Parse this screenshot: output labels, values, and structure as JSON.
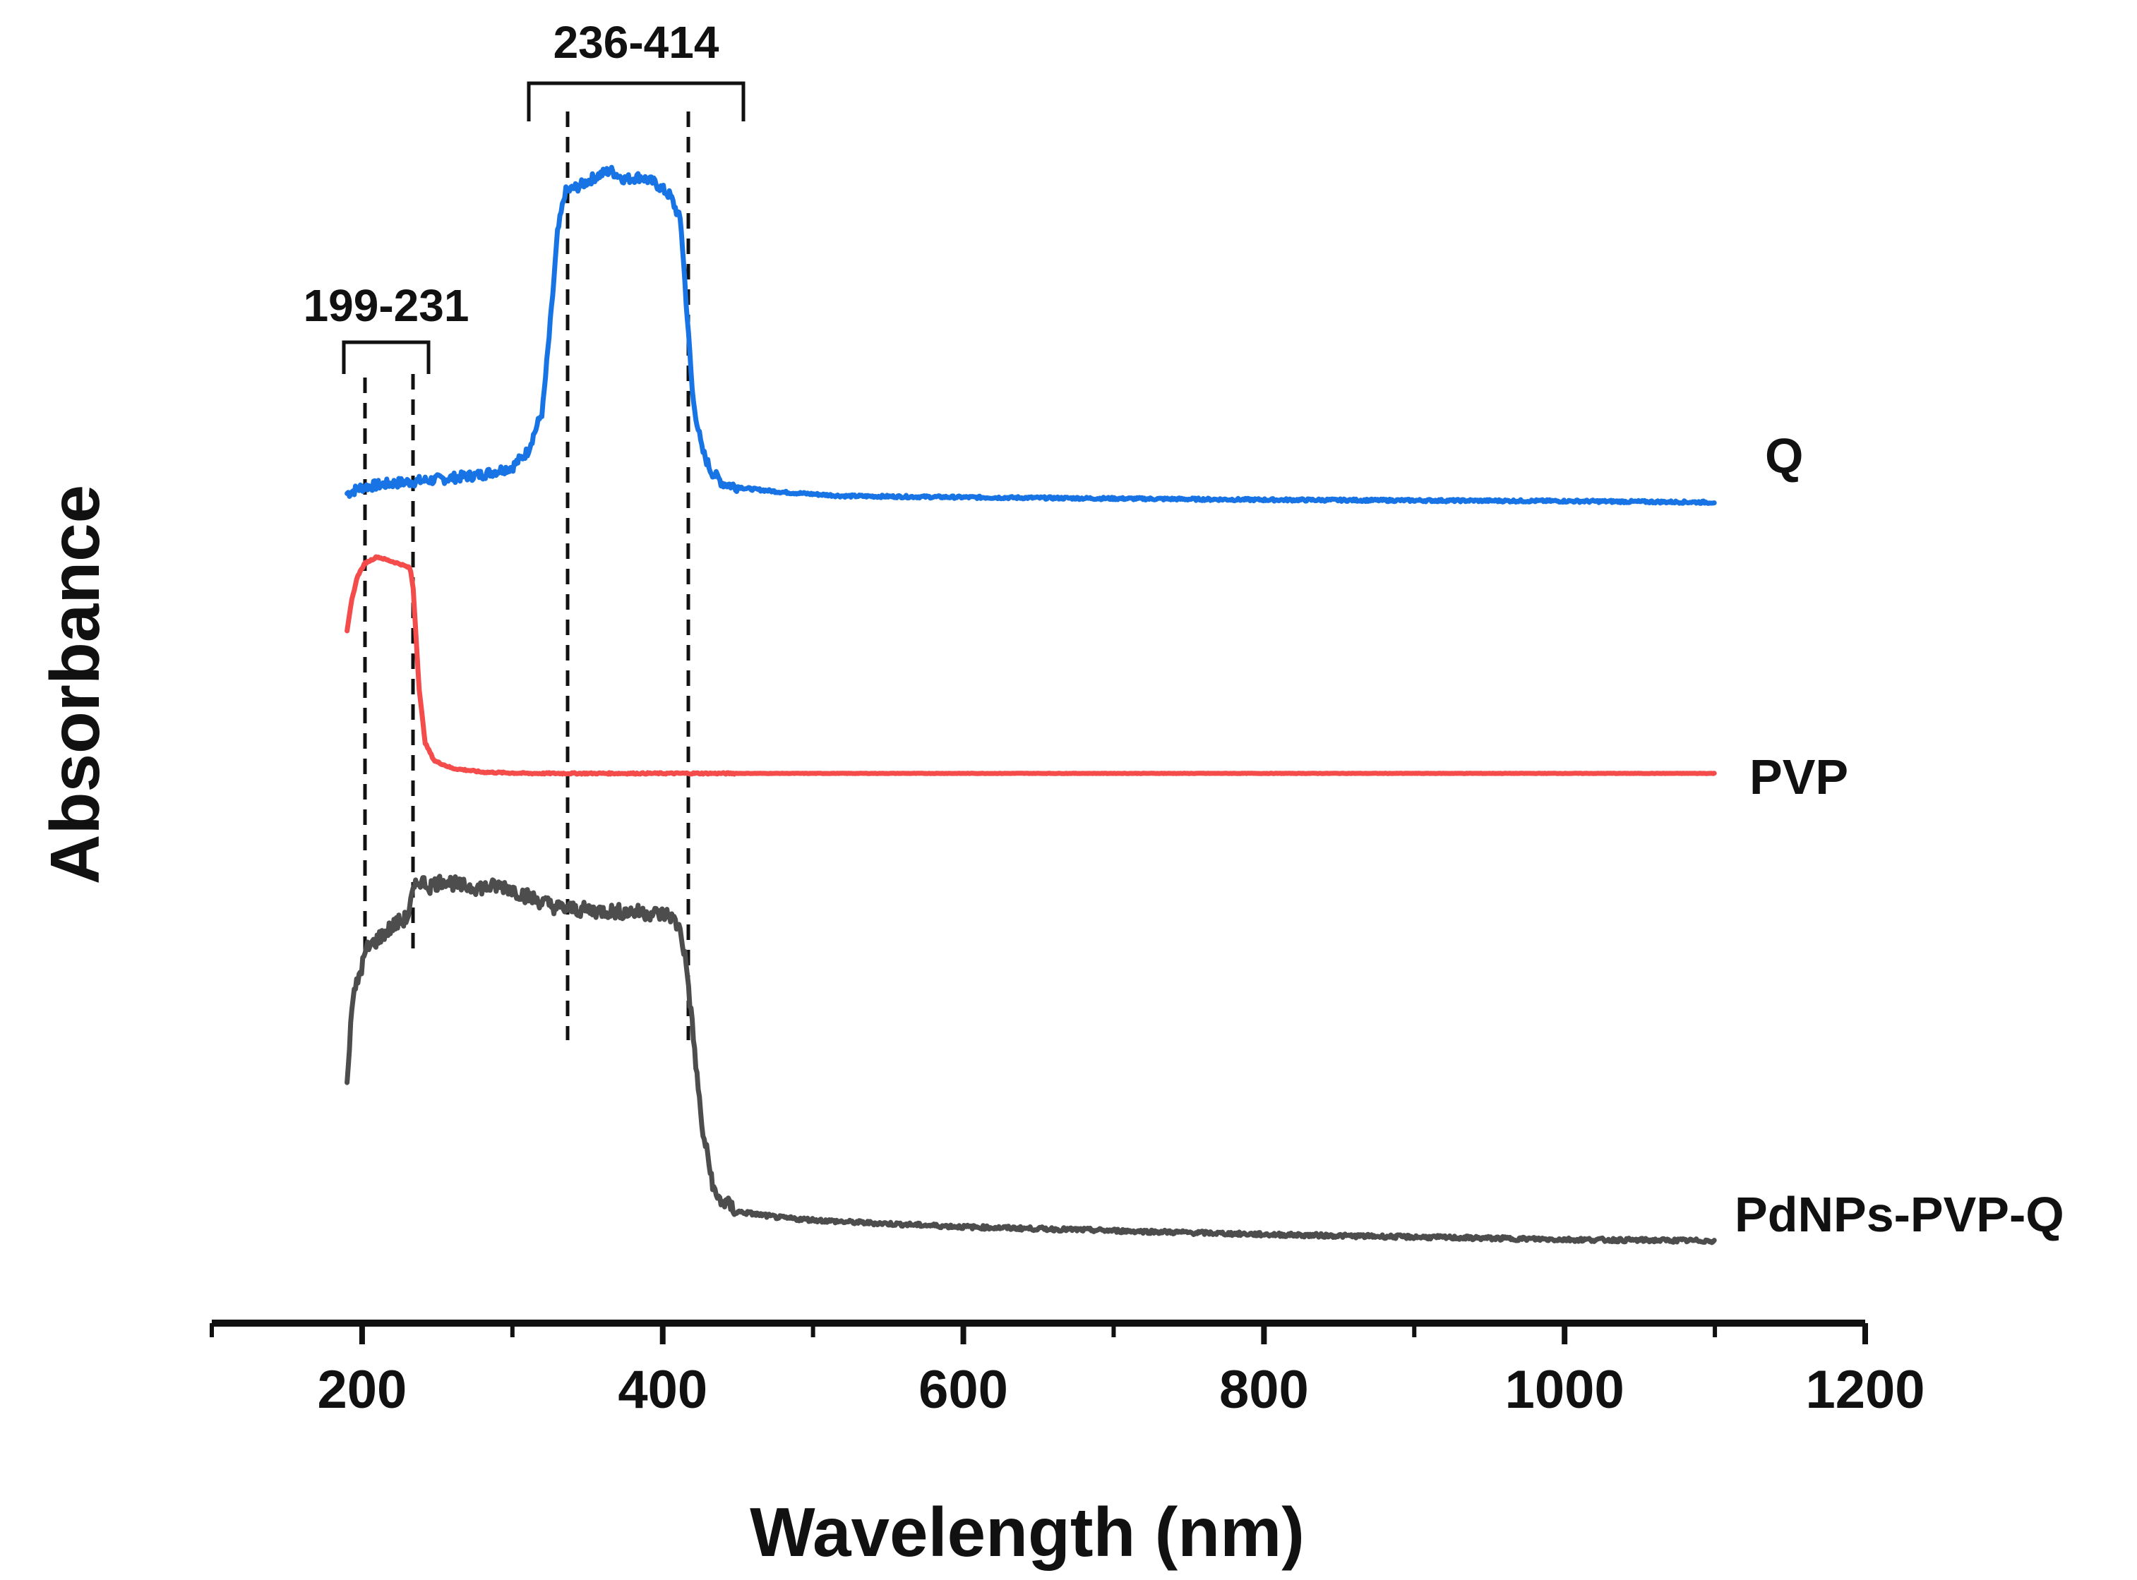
{
  "chart_data": {
    "type": "line",
    "title": "",
    "xlabel": "Wavelength (nm)",
    "ylabel": "Absorbance",
    "xlim": [
      100,
      1200
    ],
    "ylim": [
      0,
      1
    ],
    "x_ticks": [
      {
        "value": 200,
        "label": "200"
      },
      {
        "value": 400,
        "label": "400"
      },
      {
        "value": 600,
        "label": "600"
      },
      {
        "value": 800,
        "label": "800"
      },
      {
        "value": 1000,
        "label": "1000"
      },
      {
        "value": 1200,
        "label": "1200"
      }
    ],
    "y_axis_ticks_shown": false,
    "series": [
      {
        "name": "Q",
        "color": "#1874e4",
        "x": [
          190,
          200,
          220,
          250,
          280,
          300,
          310,
          320,
          326,
          330,
          335,
          345,
          355,
          365,
          375,
          385,
          395,
          405,
          412,
          416,
          420,
          426,
          432,
          440,
          455,
          480,
          520,
          600,
          800,
          1000,
          1100
        ],
        "y": [
          0.655,
          0.66,
          0.663,
          0.666,
          0.67,
          0.676,
          0.688,
          0.72,
          0.8,
          0.86,
          0.893,
          0.898,
          0.905,
          0.91,
          0.903,
          0.905,
          0.9,
          0.89,
          0.87,
          0.8,
          0.73,
          0.69,
          0.673,
          0.663,
          0.659,
          0.656,
          0.653,
          0.652,
          0.65,
          0.649,
          0.648
        ]
      },
      {
        "name": "PVP",
        "color": "#f44b4b",
        "x": [
          190,
          193,
          197,
          202,
          210,
          218,
          226,
          232,
          234,
          236,
          238,
          242,
          248,
          260,
          280,
          310,
          360,
          450,
          600,
          800,
          1000,
          1100
        ],
        "y": [
          0.546,
          0.57,
          0.59,
          0.6,
          0.605,
          0.602,
          0.599,
          0.596,
          0.58,
          0.54,
          0.5,
          0.458,
          0.444,
          0.438,
          0.435,
          0.434,
          0.434,
          0.434,
          0.434,
          0.434,
          0.434,
          0.434
        ],
        "annotation": {
          "text": "199-231",
          "start": 199,
          "end": 231,
          "bracket_x": [
            188,
            243
          ]
        }
      },
      {
        "name": "PdNPs-PVP-Q",
        "color": "#4d4d4d",
        "x": [
          190,
          193,
          197,
          203,
          212,
          222,
          230,
          234,
          238,
          245,
          255,
          265,
          280,
          295,
          310,
          330,
          350,
          370,
          390,
          405,
          412,
          416,
          420,
          426,
          435,
          450,
          480,
          520,
          600,
          800,
          1000,
          1100
        ],
        "y": [
          0.19,
          0.25,
          0.27,
          0.295,
          0.305,
          0.315,
          0.32,
          0.34,
          0.35,
          0.345,
          0.35,
          0.345,
          0.344,
          0.345,
          0.337,
          0.328,
          0.326,
          0.325,
          0.324,
          0.322,
          0.31,
          0.28,
          0.23,
          0.155,
          0.1,
          0.088,
          0.083,
          0.08,
          0.076,
          0.07,
          0.066,
          0.065
        ],
        "annotation": {
          "text": "236-414",
          "start": 236,
          "end": 414,
          "bracket_x": [
            306,
            451
          ]
        }
      }
    ],
    "series_labels": [
      "Q",
      "PVP",
      "PdNPs-PVP-Q"
    ],
    "bracket_labels": [
      "199-231",
      "236-414"
    ]
  }
}
